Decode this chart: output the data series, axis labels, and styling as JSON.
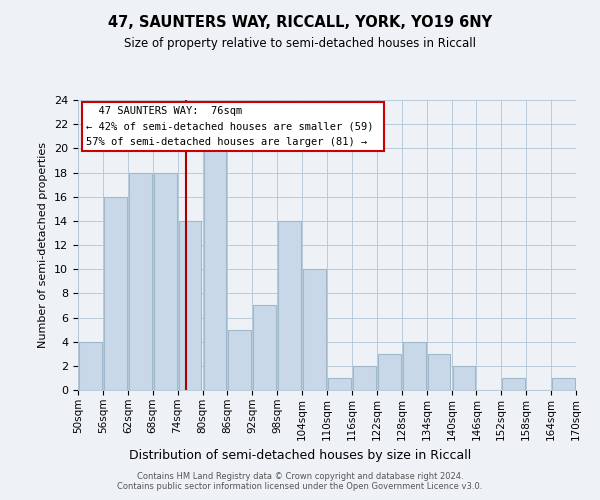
{
  "title": "47, SAUNTERS WAY, RICCALL, YORK, YO19 6NY",
  "subtitle": "Size of property relative to semi-detached houses in Riccall",
  "xlabel": "Distribution of semi-detached houses by size in Riccall",
  "ylabel": "Number of semi-detached properties",
  "bin_edges": [
    50,
    56,
    62,
    68,
    74,
    80,
    86,
    92,
    98,
    104,
    110,
    116,
    122,
    128,
    134,
    140,
    146,
    152,
    158,
    164,
    170
  ],
  "bar_heights": [
    4,
    16,
    18,
    18,
    14,
    20,
    5,
    7,
    14,
    10,
    1,
    2,
    3,
    4,
    3,
    2,
    0,
    1,
    0,
    1
  ],
  "bar_color": "#c8d8e8",
  "bar_edge_color": "#a0b8cc",
  "annotation_title": "47 SAUNTERS WAY:  76sqm",
  "annotation_line1": "← 42% of semi-detached houses are smaller (59)",
  "annotation_line2": "57% of semi-detached houses are larger (81) →",
  "annotation_box_color": "#ffffff",
  "annotation_box_edge_color": "#cc0000",
  "red_line_x": 76,
  "ylim": [
    0,
    24
  ],
  "yticks": [
    0,
    2,
    4,
    6,
    8,
    10,
    12,
    14,
    16,
    18,
    20,
    22,
    24
  ],
  "footer_line1": "Contains HM Land Registry data © Crown copyright and database right 2024.",
  "footer_line2": "Contains public sector information licensed under the Open Government Licence v3.0.",
  "background_color": "#eef2f6"
}
